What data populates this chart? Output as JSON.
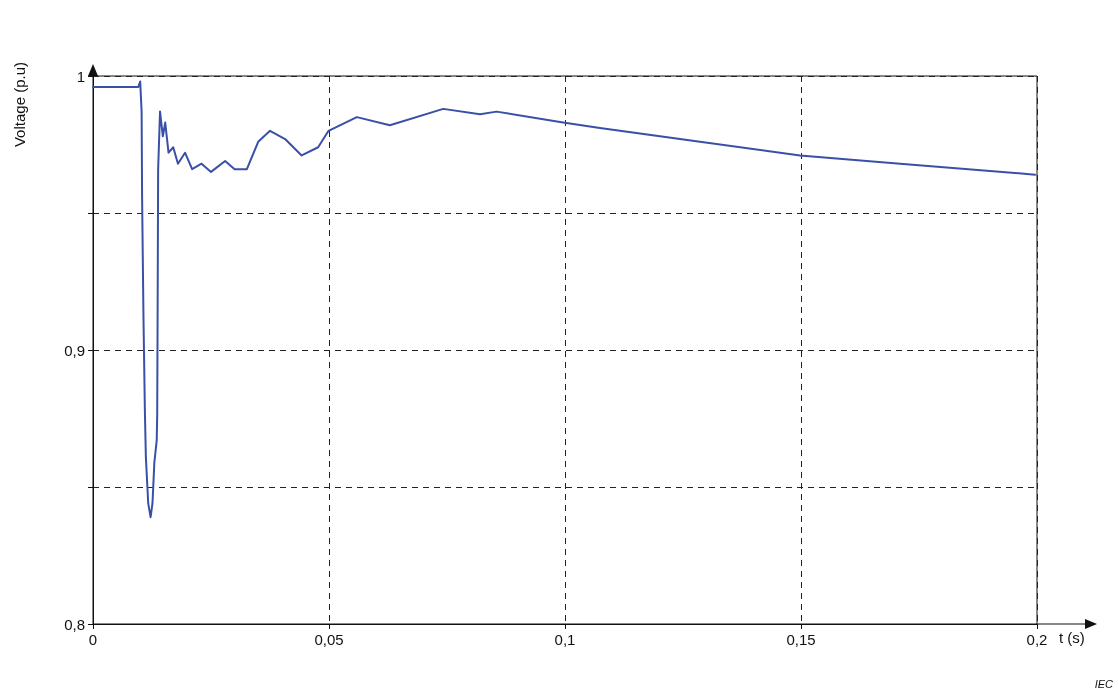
{
  "chart_data": {
    "type": "line",
    "xlabel": "t (s)",
    "ylabel": "Voltage (p.u)",
    "annotations": [
      "IEC"
    ],
    "x": [
      0,
      0.0096,
      0.01,
      0.0103,
      0.0104,
      0.0107,
      0.011,
      0.0112,
      0.0117,
      0.0122,
      0.0126,
      0.013,
      0.0135,
      0.0136,
      0.0137,
      0.0138,
      0.0142,
      0.0148,
      0.0153,
      0.016,
      0.017,
      0.018,
      0.0195,
      0.021,
      0.023,
      0.025,
      0.028,
      0.03,
      0.0326,
      0.035,
      0.0375,
      0.0407,
      0.0442,
      0.0477,
      0.0499,
      0.0559,
      0.0629,
      0.0742,
      0.082,
      0.0855,
      0.0996,
      0.1074,
      0.1286,
      0.1498,
      0.171,
      0.1996
    ],
    "series": [
      {
        "color": "#3a50a8",
        "values": [
          0.996,
          0.996,
          0.998,
          0.987,
          0.956,
          0.911,
          0.877,
          0.861,
          0.844,
          0.839,
          0.844,
          0.859,
          0.867,
          0.876,
          0.917,
          0.966,
          0.987,
          0.978,
          0.983,
          0.972,
          0.974,
          0.968,
          0.972,
          0.966,
          0.968,
          0.965,
          0.969,
          0.966,
          0.966,
          0.976,
          0.98,
          0.977,
          0.971,
          0.974,
          0.98,
          0.985,
          0.982,
          0.988,
          0.986,
          0.987,
          0.983,
          0.981,
          0.976,
          0.971,
          0.968,
          0.964
        ]
      }
    ],
    "xlim": [
      0,
      0.2
    ],
    "xticks": [
      0,
      {
        "value": 0.05,
        "label": "0,05"
      },
      {
        "value": 0.1,
        "label": "0,1"
      },
      {
        "value": 0.15,
        "label": "0,15"
      },
      {
        "value": 0.2,
        "label": "0,2"
      }
    ],
    "ylim": [
      0.8,
      1
    ],
    "yticks": [
      {
        "value": 0.8,
        "label": "0,8"
      },
      {
        "value": 0.85,
        "label": null
      },
      {
        "value": 0.9,
        "label": "0,9"
      },
      {
        "value": 0.95,
        "label": null
      },
      1
    ],
    "grid": true,
    "marker": "none",
    "line_style": "solid"
  }
}
